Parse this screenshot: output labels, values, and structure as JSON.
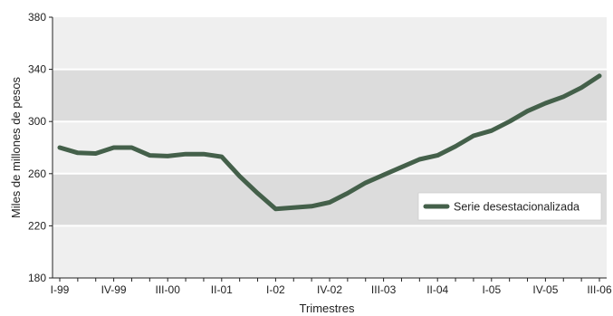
{
  "chart_data": {
    "type": "line",
    "xlabel": "Trimestres",
    "ylabel": "Miles de millones de pesos",
    "ylim": [
      180,
      380
    ],
    "yticks": [
      180,
      220,
      260,
      300,
      340,
      380
    ],
    "grid": true,
    "legend_position": "right",
    "x": [
      "I-99",
      "II-99",
      "III-99",
      "IV-99",
      "I-00",
      "II-00",
      "III-00",
      "IV-00",
      "I-01",
      "II-01",
      "III-01",
      "IV-01",
      "I-02",
      "II-02",
      "III-02",
      "IV-02",
      "I-03",
      "II-03",
      "III-03",
      "IV-03",
      "I-04",
      "II-04",
      "III-04",
      "IV-04",
      "I-05",
      "II-05",
      "III-05",
      "IV-05",
      "I-06",
      "II-06",
      "III-06"
    ],
    "x_tick_labels": [
      "I-99",
      "IV-99",
      "III-00",
      "II-01",
      "I-02",
      "IV-02",
      "III-03",
      "II-04",
      "I-05",
      "IV-05",
      "III-06"
    ],
    "series": [
      {
        "name": "Serie desestacionalizada",
        "color": "#44604a",
        "values": [
          280,
          276,
          275.5,
          280,
          280,
          274,
          273.5,
          275,
          275,
          273,
          258,
          245,
          233,
          234,
          235,
          238,
          245,
          253,
          259,
          265,
          271,
          274,
          281,
          289,
          293,
          300,
          308,
          314,
          319,
          326,
          335
        ]
      }
    ],
    "band_colors": {
      "shaded": "#dcdcdc",
      "plain": "#efefef"
    }
  }
}
